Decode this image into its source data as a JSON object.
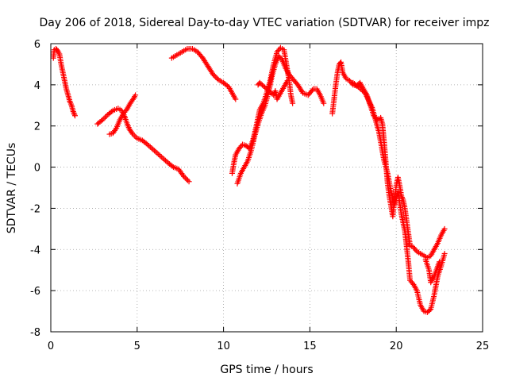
{
  "chart_data": {
    "type": "scatter",
    "title": "Day 206 of 2018, Sidereal Day-to-day VTEC variation (SDTVAR) for receiver impz",
    "xlabel": "GPS time / hours",
    "ylabel": "SDTVAR / TECUs",
    "xlim": [
      0,
      25
    ],
    "ylim": [
      -8,
      6
    ],
    "xticks": [
      0,
      5,
      10,
      15,
      20,
      25
    ],
    "yticks": [
      -8,
      -6,
      -4,
      -2,
      0,
      2,
      4,
      6
    ],
    "grid": true,
    "marker": "plus",
    "color": "#ff0000",
    "series": [
      {
        "values": [
          [
            0.15,
            5.3
          ],
          [
            0.2,
            5.7
          ],
          [
            0.3,
            5.75
          ],
          [
            0.4,
            5.65
          ],
          [
            0.5,
            5.5
          ],
          [
            0.6,
            5.0
          ],
          [
            0.7,
            4.6
          ],
          [
            0.8,
            4.2
          ],
          [
            0.9,
            3.8
          ],
          [
            1.0,
            3.5
          ],
          [
            1.1,
            3.2
          ],
          [
            1.2,
            3.0
          ],
          [
            1.3,
            2.7
          ],
          [
            1.4,
            2.5
          ]
        ]
      },
      {
        "values": [
          [
            2.7,
            2.1
          ],
          [
            3.0,
            2.3
          ],
          [
            3.3,
            2.55
          ],
          [
            3.6,
            2.75
          ],
          [
            3.9,
            2.85
          ],
          [
            4.1,
            2.75
          ],
          [
            4.2,
            2.6
          ],
          [
            4.3,
            2.4
          ],
          [
            4.4,
            2.15
          ],
          [
            4.55,
            1.85
          ],
          [
            4.75,
            1.6
          ],
          [
            5.0,
            1.4
          ],
          [
            5.3,
            1.3
          ],
          [
            5.6,
            1.1
          ],
          [
            6.0,
            0.8
          ],
          [
            6.4,
            0.5
          ],
          [
            6.8,
            0.2
          ],
          [
            7.1,
            0.0
          ],
          [
            7.4,
            -0.1
          ],
          [
            7.7,
            -0.45
          ],
          [
            8.0,
            -0.7
          ]
        ]
      },
      {
        "values": [
          [
            3.4,
            1.6
          ],
          [
            3.6,
            1.65
          ],
          [
            3.8,
            1.9
          ],
          [
            4.0,
            2.3
          ],
          [
            4.2,
            2.6
          ],
          [
            4.4,
            2.8
          ],
          [
            4.6,
            3.1
          ],
          [
            4.8,
            3.35
          ],
          [
            4.9,
            3.5
          ]
        ]
      },
      {
        "values": [
          [
            7.0,
            5.3
          ],
          [
            7.3,
            5.45
          ],
          [
            7.6,
            5.6
          ],
          [
            7.9,
            5.75
          ],
          [
            8.2,
            5.75
          ],
          [
            8.5,
            5.6
          ],
          [
            8.8,
            5.3
          ],
          [
            9.1,
            4.9
          ],
          [
            9.4,
            4.5
          ],
          [
            9.7,
            4.25
          ],
          [
            10.0,
            4.1
          ],
          [
            10.3,
            3.9
          ],
          [
            10.5,
            3.6
          ],
          [
            10.7,
            3.3
          ]
        ]
      },
      {
        "values": [
          [
            10.5,
            -0.3
          ],
          [
            10.6,
            0.2
          ],
          [
            10.7,
            0.6
          ],
          [
            10.9,
            0.9
          ],
          [
            11.1,
            1.1
          ],
          [
            11.3,
            1.05
          ],
          [
            11.5,
            0.9
          ],
          [
            11.7,
            1.3
          ],
          [
            11.9,
            2.0
          ],
          [
            12.1,
            2.8
          ],
          [
            12.3,
            3.1
          ],
          [
            12.5,
            3.6
          ],
          [
            12.7,
            4.2
          ],
          [
            12.9,
            5.0
          ],
          [
            13.1,
            5.6
          ],
          [
            13.3,
            5.8
          ],
          [
            13.5,
            5.7
          ],
          [
            13.6,
            5.2
          ],
          [
            13.8,
            4.2
          ],
          [
            13.9,
            3.5
          ],
          [
            14.0,
            3.1
          ]
        ]
      },
      {
        "values": [
          [
            10.8,
            -0.8
          ],
          [
            11.0,
            -0.3
          ],
          [
            11.2,
            0.0
          ],
          [
            11.4,
            0.3
          ],
          [
            11.6,
            0.8
          ],
          [
            11.8,
            1.5
          ],
          [
            12.0,
            2.1
          ],
          [
            12.2,
            2.6
          ],
          [
            12.4,
            3.0
          ],
          [
            12.6,
            3.6
          ],
          [
            12.8,
            4.4
          ],
          [
            13.0,
            5.0
          ],
          [
            13.2,
            5.4
          ],
          [
            13.4,
            5.2
          ],
          [
            13.6,
            4.8
          ],
          [
            13.8,
            4.5
          ],
          [
            14.0,
            4.3
          ],
          [
            14.3,
            4.0
          ],
          [
            14.6,
            3.6
          ],
          [
            14.9,
            3.5
          ],
          [
            15.2,
            3.8
          ],
          [
            15.4,
            3.8
          ],
          [
            15.6,
            3.5
          ],
          [
            15.8,
            3.1
          ]
        ]
      },
      {
        "values": [
          [
            12.0,
            4.0
          ],
          [
            12.1,
            4.1
          ],
          [
            12.9,
            3.5
          ],
          [
            13.0,
            3.7
          ],
          [
            13.1,
            3.3
          ],
          [
            13.7,
            4.2
          ]
        ]
      },
      {
        "values": [
          [
            16.3,
            2.6
          ],
          [
            16.4,
            3.3
          ],
          [
            16.5,
            4.0
          ],
          [
            16.6,
            4.6
          ],
          [
            16.7,
            5.0
          ],
          [
            16.8,
            5.1
          ],
          [
            16.9,
            4.6
          ],
          [
            17.1,
            4.3
          ],
          [
            17.3,
            4.2
          ],
          [
            17.5,
            4.0
          ],
          [
            17.7,
            3.95
          ],
          [
            17.9,
            4.1
          ],
          [
            18.1,
            3.8
          ],
          [
            18.3,
            3.5
          ],
          [
            18.5,
            3.0
          ],
          [
            18.7,
            2.5
          ],
          [
            18.9,
            2.3
          ],
          [
            19.1,
            2.4
          ],
          [
            19.2,
            2.1
          ],
          [
            19.3,
            1.2
          ],
          [
            19.4,
            0.2
          ],
          [
            19.5,
            -0.8
          ],
          [
            19.6,
            -1.4
          ],
          [
            19.7,
            -1.9
          ],
          [
            19.8,
            -2.4
          ],
          [
            19.9,
            -1.6
          ],
          [
            20.0,
            -0.9
          ],
          [
            20.1,
            -0.5
          ],
          [
            20.2,
            -0.9
          ],
          [
            20.3,
            -1.4
          ],
          [
            20.4,
            -1.6
          ],
          [
            20.5,
            -2.0
          ],
          [
            20.6,
            -2.6
          ],
          [
            20.7,
            -3.2
          ],
          [
            20.8,
            -3.8
          ],
          [
            21.0,
            -3.9
          ],
          [
            21.2,
            -4.1
          ],
          [
            21.4,
            -4.2
          ],
          [
            21.6,
            -4.3
          ],
          [
            21.8,
            -4.4
          ],
          [
            22.0,
            -4.3
          ],
          [
            22.2,
            -4.0
          ],
          [
            22.4,
            -3.7
          ],
          [
            22.6,
            -3.3
          ],
          [
            22.8,
            -3.0
          ]
        ]
      },
      {
        "values": [
          [
            17.5,
            4.1
          ],
          [
            17.8,
            3.9
          ],
          [
            18.2,
            3.6
          ],
          [
            18.6,
            2.9
          ],
          [
            19.0,
            1.7
          ],
          [
            19.3,
            0.3
          ],
          [
            19.5,
            -0.3
          ],
          [
            19.7,
            -1.2
          ],
          [
            19.9,
            -1.8
          ],
          [
            20.1,
            -1.2
          ],
          [
            20.3,
            -2.3
          ],
          [
            20.5,
            -3.1
          ],
          [
            20.7,
            -4.6
          ],
          [
            20.8,
            -5.5
          ],
          [
            21.0,
            -5.7
          ],
          [
            21.2,
            -6.0
          ],
          [
            21.4,
            -6.7
          ],
          [
            21.6,
            -7.0
          ],
          [
            21.8,
            -7.05
          ],
          [
            22.0,
            -6.9
          ],
          [
            22.2,
            -6.2
          ],
          [
            22.4,
            -5.3
          ],
          [
            22.6,
            -4.8
          ],
          [
            22.8,
            -4.2
          ]
        ]
      },
      {
        "values": [
          [
            21.7,
            -4.5
          ],
          [
            21.9,
            -5.0
          ],
          [
            22.0,
            -5.6
          ],
          [
            22.2,
            -5.3
          ],
          [
            22.5,
            -4.6
          ]
        ]
      }
    ]
  }
}
